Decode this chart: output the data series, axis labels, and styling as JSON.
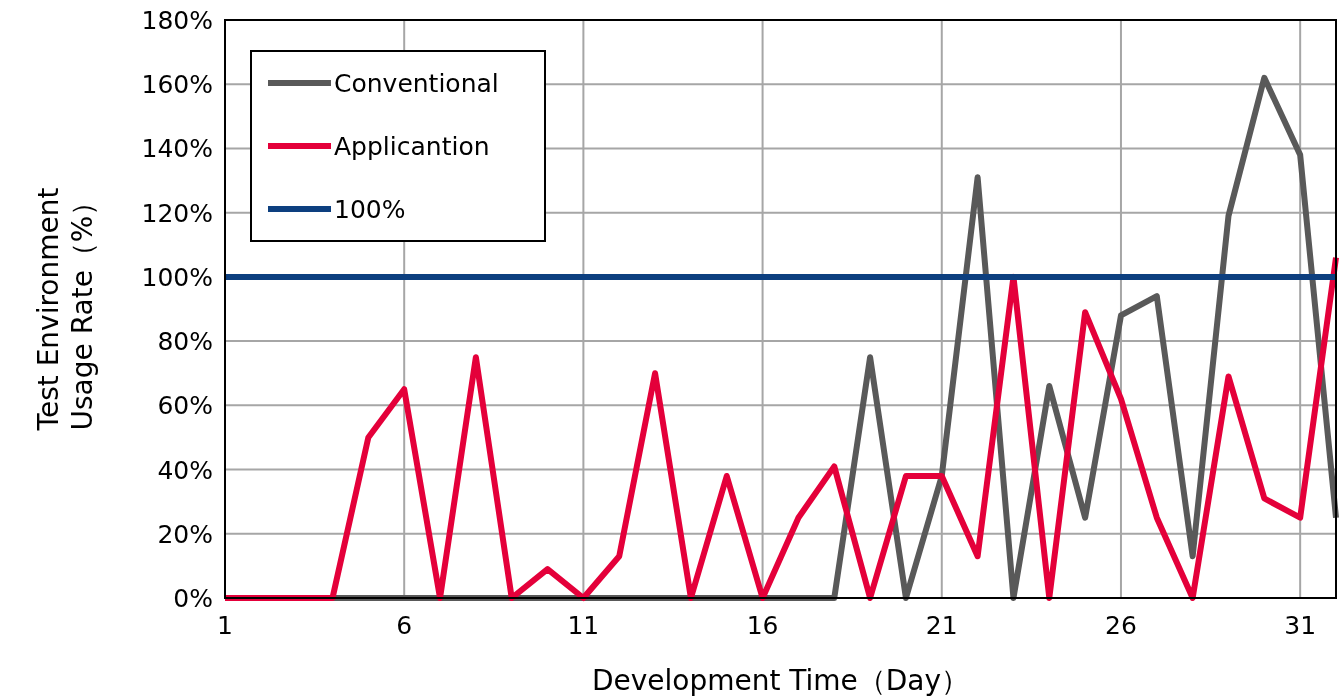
{
  "chart_data": {
    "type": "line",
    "xlabel": "Development Time（Day）",
    "ylabel": "Test Environment\nUsage Rate（%）",
    "categories": [
      "1",
      null,
      null,
      null,
      null,
      "6",
      null,
      null,
      null,
      null,
      "11",
      null,
      null,
      null,
      null,
      "16",
      null,
      null,
      null,
      null,
      "21",
      null,
      null,
      null,
      null,
      "26",
      null,
      null,
      null,
      null,
      "31",
      null
    ],
    "series": [
      {
        "name": "Conventional",
        "color": "#595959",
        "values": [
          0,
          0,
          0,
          0,
          0,
          0,
          0,
          0,
          0,
          0,
          0,
          0,
          0,
          0,
          0,
          0,
          0,
          0,
          75,
          0,
          38,
          131,
          0,
          66,
          25,
          88,
          94,
          13,
          119,
          162,
          138,
          25
        ]
      },
      {
        "name": "Applicantion",
        "color": "#e4003a",
        "values": [
          0,
          0,
          0,
          0,
          50,
          65,
          0,
          75,
          0,
          9,
          0,
          13,
          70,
          0,
          38,
          0,
          25,
          41,
          0,
          38,
          38,
          13,
          100,
          0,
          89,
          62,
          25,
          0,
          69,
          31,
          25,
          106
        ]
      },
      {
        "name": "100%",
        "color": "#0d3f7f",
        "values": [
          100,
          100,
          100,
          100,
          100,
          100,
          100,
          100,
          100,
          100,
          100,
          100,
          100,
          100,
          100,
          100,
          100,
          100,
          100,
          100,
          100,
          100,
          100,
          100,
          100,
          100,
          100,
          100,
          100,
          100,
          100,
          100
        ]
      }
    ],
    "ylim": [
      0,
      180
    ],
    "yticks": [
      {
        "value": 0,
        "label": "0%"
      },
      {
        "value": 20,
        "label": "20%"
      },
      {
        "value": 40,
        "label": "40%"
      },
      {
        "value": 60,
        "label": "60%"
      },
      {
        "value": 80,
        "label": "80%"
      },
      {
        "value": 100,
        "label": "100%"
      },
      {
        "value": 120,
        "label": "120%"
      },
      {
        "value": 140,
        "label": "140%"
      },
      {
        "value": 160,
        "label": "160%"
      },
      {
        "value": 180,
        "label": "180%"
      }
    ],
    "grid": true,
    "legend": "top left",
    "marker": "none",
    "line_style": "solid"
  }
}
